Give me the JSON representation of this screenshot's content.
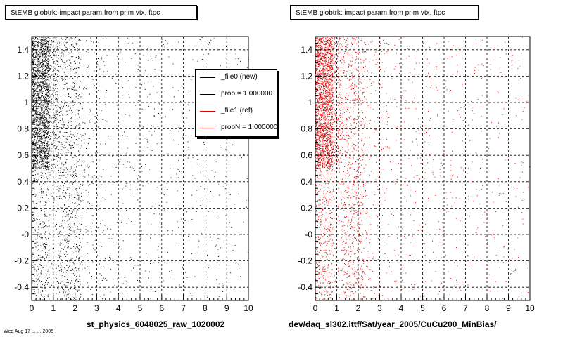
{
  "chart_data": [
    {
      "type": "scatter",
      "title": "StEMB globtrk: impact param from prim vtx, ftpc",
      "xlabel": "st_physics_6048025_raw_1020002",
      "xlim": [
        0,
        10
      ],
      "ylim": [
        -0.5,
        1.5
      ],
      "xticks": [
        "0",
        "1",
        "2",
        "3",
        "4",
        "5",
        "6",
        "7",
        "8",
        "9",
        "10"
      ],
      "yticks": [
        "-0.4",
        "-0.2",
        "-0",
        "0.2",
        "0.4",
        "0.6",
        "0.8",
        "1",
        "1.2",
        "1.4"
      ],
      "grid": true,
      "point_color": "#000000",
      "legend": {
        "position": "top-right",
        "entries": [
          {
            "label": "_file0 (new)",
            "color": "#000000"
          },
          {
            "label": "prob = 1.000000",
            "color": "#000000"
          },
          {
            "label": "_file1 (ref)",
            "color": "#e00000"
          },
          {
            "label": "probN = 1.000000",
            "color": "#e00000"
          }
        ]
      }
    },
    {
      "type": "scatter",
      "title": "StEMB globtrk: impact param from prim vtx, ftpc",
      "xlabel": "dev/daq_sl302.ittf/Sat/year_2005/CuCu200_MinBias/",
      "xlim": [
        0,
        10
      ],
      "ylim": [
        -0.5,
        1.5
      ],
      "xticks": [
        "0",
        "1",
        "2",
        "3",
        "4",
        "5",
        "6",
        "7",
        "8",
        "9",
        "10"
      ],
      "yticks": [
        "-0.4",
        "-0.2",
        "-0",
        "0.2",
        "0.4",
        "0.6",
        "0.8",
        "1",
        "1.2",
        "1.4"
      ],
      "grid": true,
      "point_color": "#e00000"
    }
  ],
  "footer": "Wed Aug 17 ... ... 2005"
}
